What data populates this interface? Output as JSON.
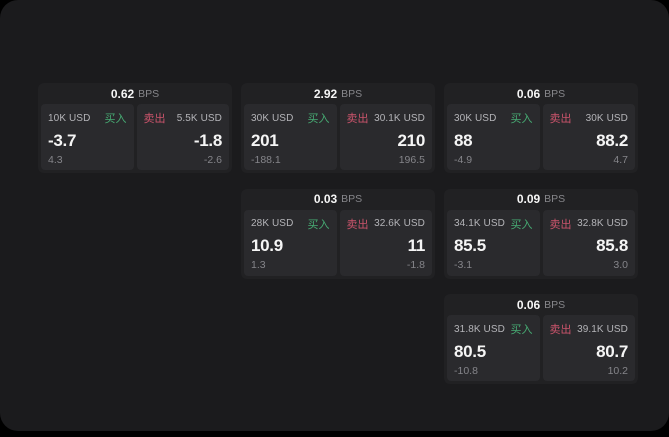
{
  "labels": {
    "bps_unit": "BPS",
    "buy": "买入",
    "sell": "卖出"
  },
  "colors": {
    "buy": "#47ac74",
    "sell": "#cb546c",
    "page_bg": "#1b1b1d",
    "card_bg": "#212123",
    "panel_bg": "#2a2a2d"
  },
  "cards": [
    {
      "bps": "0.62",
      "row": 1,
      "col": 1,
      "buy": {
        "size": "10K USD",
        "value": "-3.7",
        "sub": "4.3"
      },
      "sell": {
        "size": "5.5K USD",
        "value": "-1.8",
        "sub": "-2.6"
      }
    },
    {
      "bps": "2.92",
      "row": 1,
      "col": 2,
      "buy": {
        "size": "30K USD",
        "value": "201",
        "sub": "-188.1"
      },
      "sell": {
        "size": "30.1K USD",
        "value": "210",
        "sub": "196.5"
      }
    },
    {
      "bps": "0.06",
      "row": 1,
      "col": 3,
      "buy": {
        "size": "30K USD",
        "value": "88",
        "sub": "-4.9"
      },
      "sell": {
        "size": "30K USD",
        "value": "88.2",
        "sub": "4.7"
      }
    },
    {
      "bps": "0.03",
      "row": 2,
      "col": 2,
      "buy": {
        "size": "28K USD",
        "value": "10.9",
        "sub": "1.3"
      },
      "sell": {
        "size": "32.6K USD",
        "value": "11",
        "sub": "-1.8"
      }
    },
    {
      "bps": "0.09",
      "row": 2,
      "col": 3,
      "buy": {
        "size": "34.1K USD",
        "value": "85.5",
        "sub": "-3.1"
      },
      "sell": {
        "size": "32.8K USD",
        "value": "85.8",
        "sub": "3.0"
      }
    },
    {
      "bps": "0.06",
      "row": 3,
      "col": 3,
      "buy": {
        "size": "31.8K USD",
        "value": "80.5",
        "sub": "-10.8"
      },
      "sell": {
        "size": "39.1K USD",
        "value": "80.7",
        "sub": "10.2"
      }
    }
  ]
}
